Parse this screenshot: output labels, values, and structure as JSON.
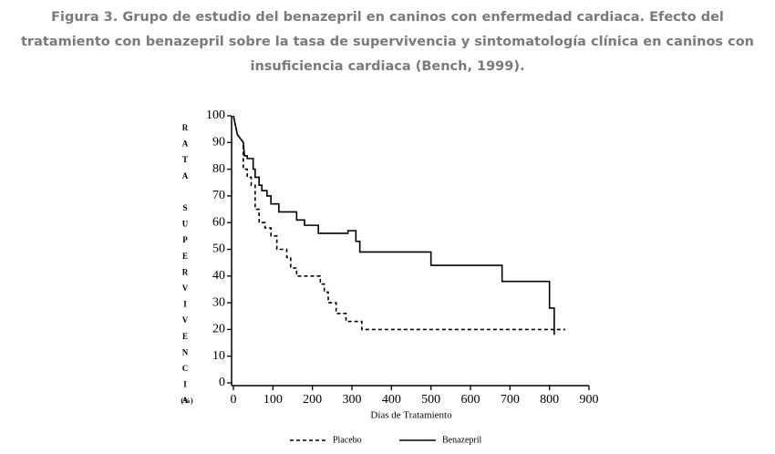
{
  "chart_data": {
    "type": "line",
    "title": "Figura 3. Grupo de estudio del benazepril en caninos con enfermedad cardiaca. Efecto del tratamiento con benazepril sobre la tasa de supervivencia y sintomatología clínica en caninos con insuficiencia cardiaca (Bench, 1999).",
    "xlabel": "Días de Tratamiento",
    "ylabel": "RATA SUPERVIVENCIA",
    "ylabel_unit": "(%)",
    "xlim": [
      0,
      900
    ],
    "xticks": [
      0,
      100,
      200,
      300,
      400,
      500,
      600,
      700,
      800,
      900
    ],
    "ylim": [
      0,
      100
    ],
    "yticks": [
      0,
      10,
      20,
      30,
      40,
      50,
      60,
      70,
      80,
      90,
      100
    ],
    "grid": false,
    "legend": "bottom",
    "series": [
      {
        "name": "Placebo",
        "color": "#000000",
        "line_style": "dashed",
        "x": [
          0,
          10,
          25,
          25,
          35,
          35,
          45,
          45,
          55,
          55,
          65,
          65,
          80,
          80,
          95,
          95,
          110,
          110,
          135,
          135,
          145,
          145,
          160,
          160,
          220,
          220,
          230,
          230,
          240,
          240,
          260,
          260,
          285,
          285,
          325,
          325,
          840
        ],
        "values": [
          100,
          93,
          90,
          80,
          80,
          77,
          77,
          74,
          74,
          65,
          65,
          60,
          60,
          58,
          58,
          55,
          55,
          50,
          50,
          47,
          47,
          43,
          43,
          40,
          40,
          37,
          37,
          34,
          34,
          30,
          30,
          26,
          26,
          23,
          23,
          20,
          20
        ]
      },
      {
        "name": "Benazepril",
        "color": "#000000",
        "line_style": "solid",
        "x": [
          0,
          10,
          25,
          28,
          35,
          35,
          50,
          50,
          55,
          55,
          65,
          65,
          72,
          72,
          85,
          85,
          95,
          95,
          115,
          115,
          160,
          160,
          180,
          180,
          215,
          215,
          290,
          290,
          310,
          310,
          320,
          320,
          500,
          500,
          680,
          680,
          800,
          800,
          812,
          812
        ],
        "values": [
          100,
          93,
          90,
          85,
          85,
          84,
          84,
          80,
          80,
          77,
          77,
          74,
          74,
          72,
          72,
          70,
          70,
          67,
          67,
          64,
          64,
          61,
          61,
          59,
          59,
          56,
          56,
          57,
          57,
          53,
          53,
          49,
          49,
          44,
          44,
          38,
          38,
          28,
          28,
          18
        ]
      }
    ]
  }
}
